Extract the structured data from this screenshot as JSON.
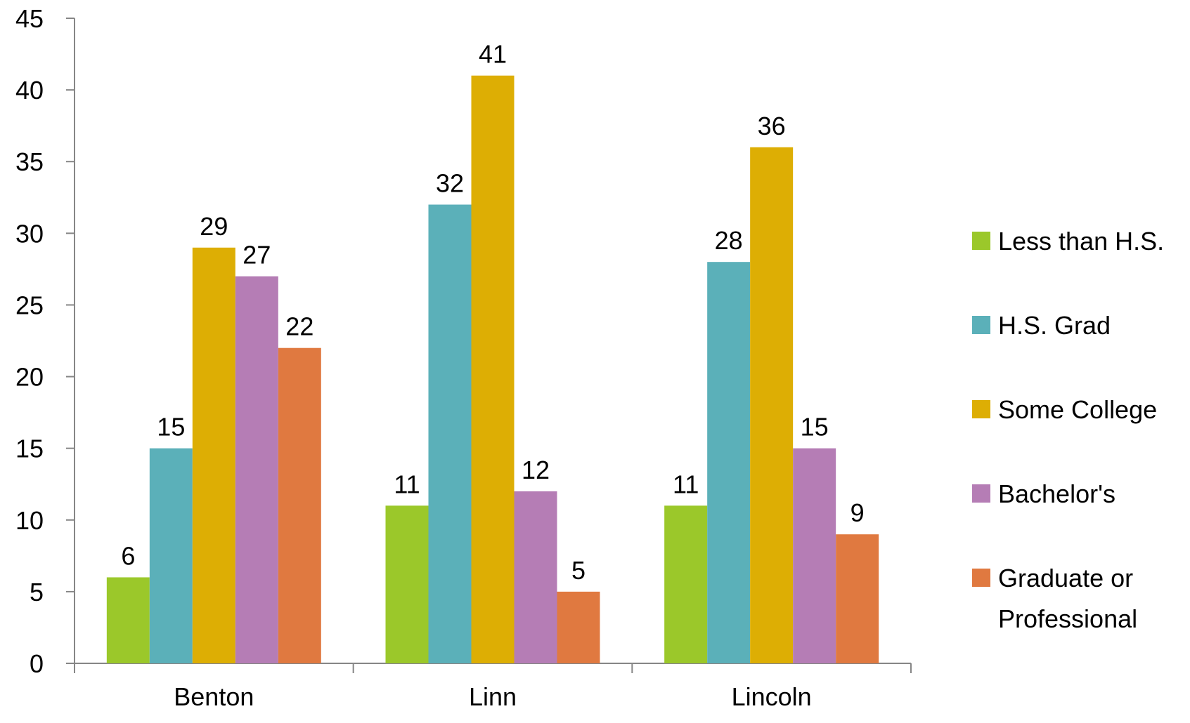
{
  "chart_data": {
    "type": "bar",
    "title": "",
    "xlabel": "",
    "ylabel": "",
    "categories": [
      "Benton",
      "Linn",
      "Lincoln"
    ],
    "series": [
      {
        "name": "Less than H.S.",
        "color": "#9bc82a",
        "values": [
          6,
          11,
          11
        ]
      },
      {
        "name": "H.S. Grad",
        "color": "#5bb0b9",
        "values": [
          15,
          32,
          28
        ]
      },
      {
        "name": "Some College",
        "color": "#ddae04",
        "values": [
          29,
          41,
          36
        ]
      },
      {
        "name": "Bachelor's",
        "color": "#b57db5",
        "values": [
          27,
          12,
          15
        ]
      },
      {
        "name": "Graduate or Professional",
        "color": "#e07940",
        "values": [
          22,
          5,
          9
        ]
      }
    ],
    "ylim": [
      0,
      45
    ],
    "yticks": [
      0,
      5,
      10,
      15,
      20,
      25,
      30,
      35,
      40,
      45
    ],
    "grid": false,
    "legend_position": "right",
    "data_labels": true
  }
}
